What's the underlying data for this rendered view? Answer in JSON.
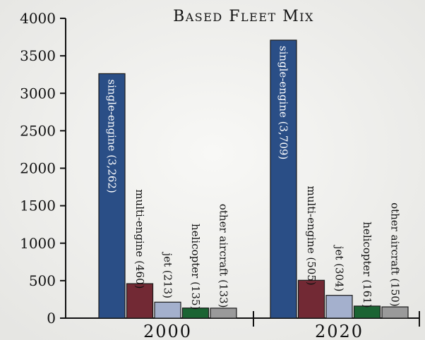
{
  "chart_data": {
    "type": "bar",
    "title": "Based Fleet Mix",
    "xlabel": "",
    "ylabel": "",
    "categories": [
      "2000",
      "2020"
    ],
    "ylim": [
      0,
      4000
    ],
    "yticks": [
      0,
      500,
      1000,
      1500,
      2000,
      2500,
      3000,
      3500,
      4000
    ],
    "grid": false,
    "legend": "none",
    "series": [
      {
        "name": "single-engine",
        "color": "#2a4e86",
        "values": [
          3262,
          3709
        ],
        "labels": [
          "single-engine (3,262)",
          "single-engine (3,709)"
        ]
      },
      {
        "name": "multi-engine",
        "color": "#722934",
        "values": [
          460,
          505
        ],
        "labels": [
          "multi-engine (460)",
          "multi-engine (505)"
        ]
      },
      {
        "name": "jet",
        "color": "#a4b0cd",
        "values": [
          213,
          304
        ],
        "labels": [
          "jet (213)",
          "jet (304)"
        ]
      },
      {
        "name": "helicopter",
        "color": "#1b6433",
        "values": [
          135,
          161
        ],
        "labels": [
          "helicopter (135)",
          "helicopter (161)"
        ]
      },
      {
        "name": "other aircraft",
        "color": "#9a9a9a",
        "values": [
          133,
          150
        ],
        "labels": [
          "other aircraft (133)",
          "other aircraft (150)"
        ]
      }
    ]
  }
}
